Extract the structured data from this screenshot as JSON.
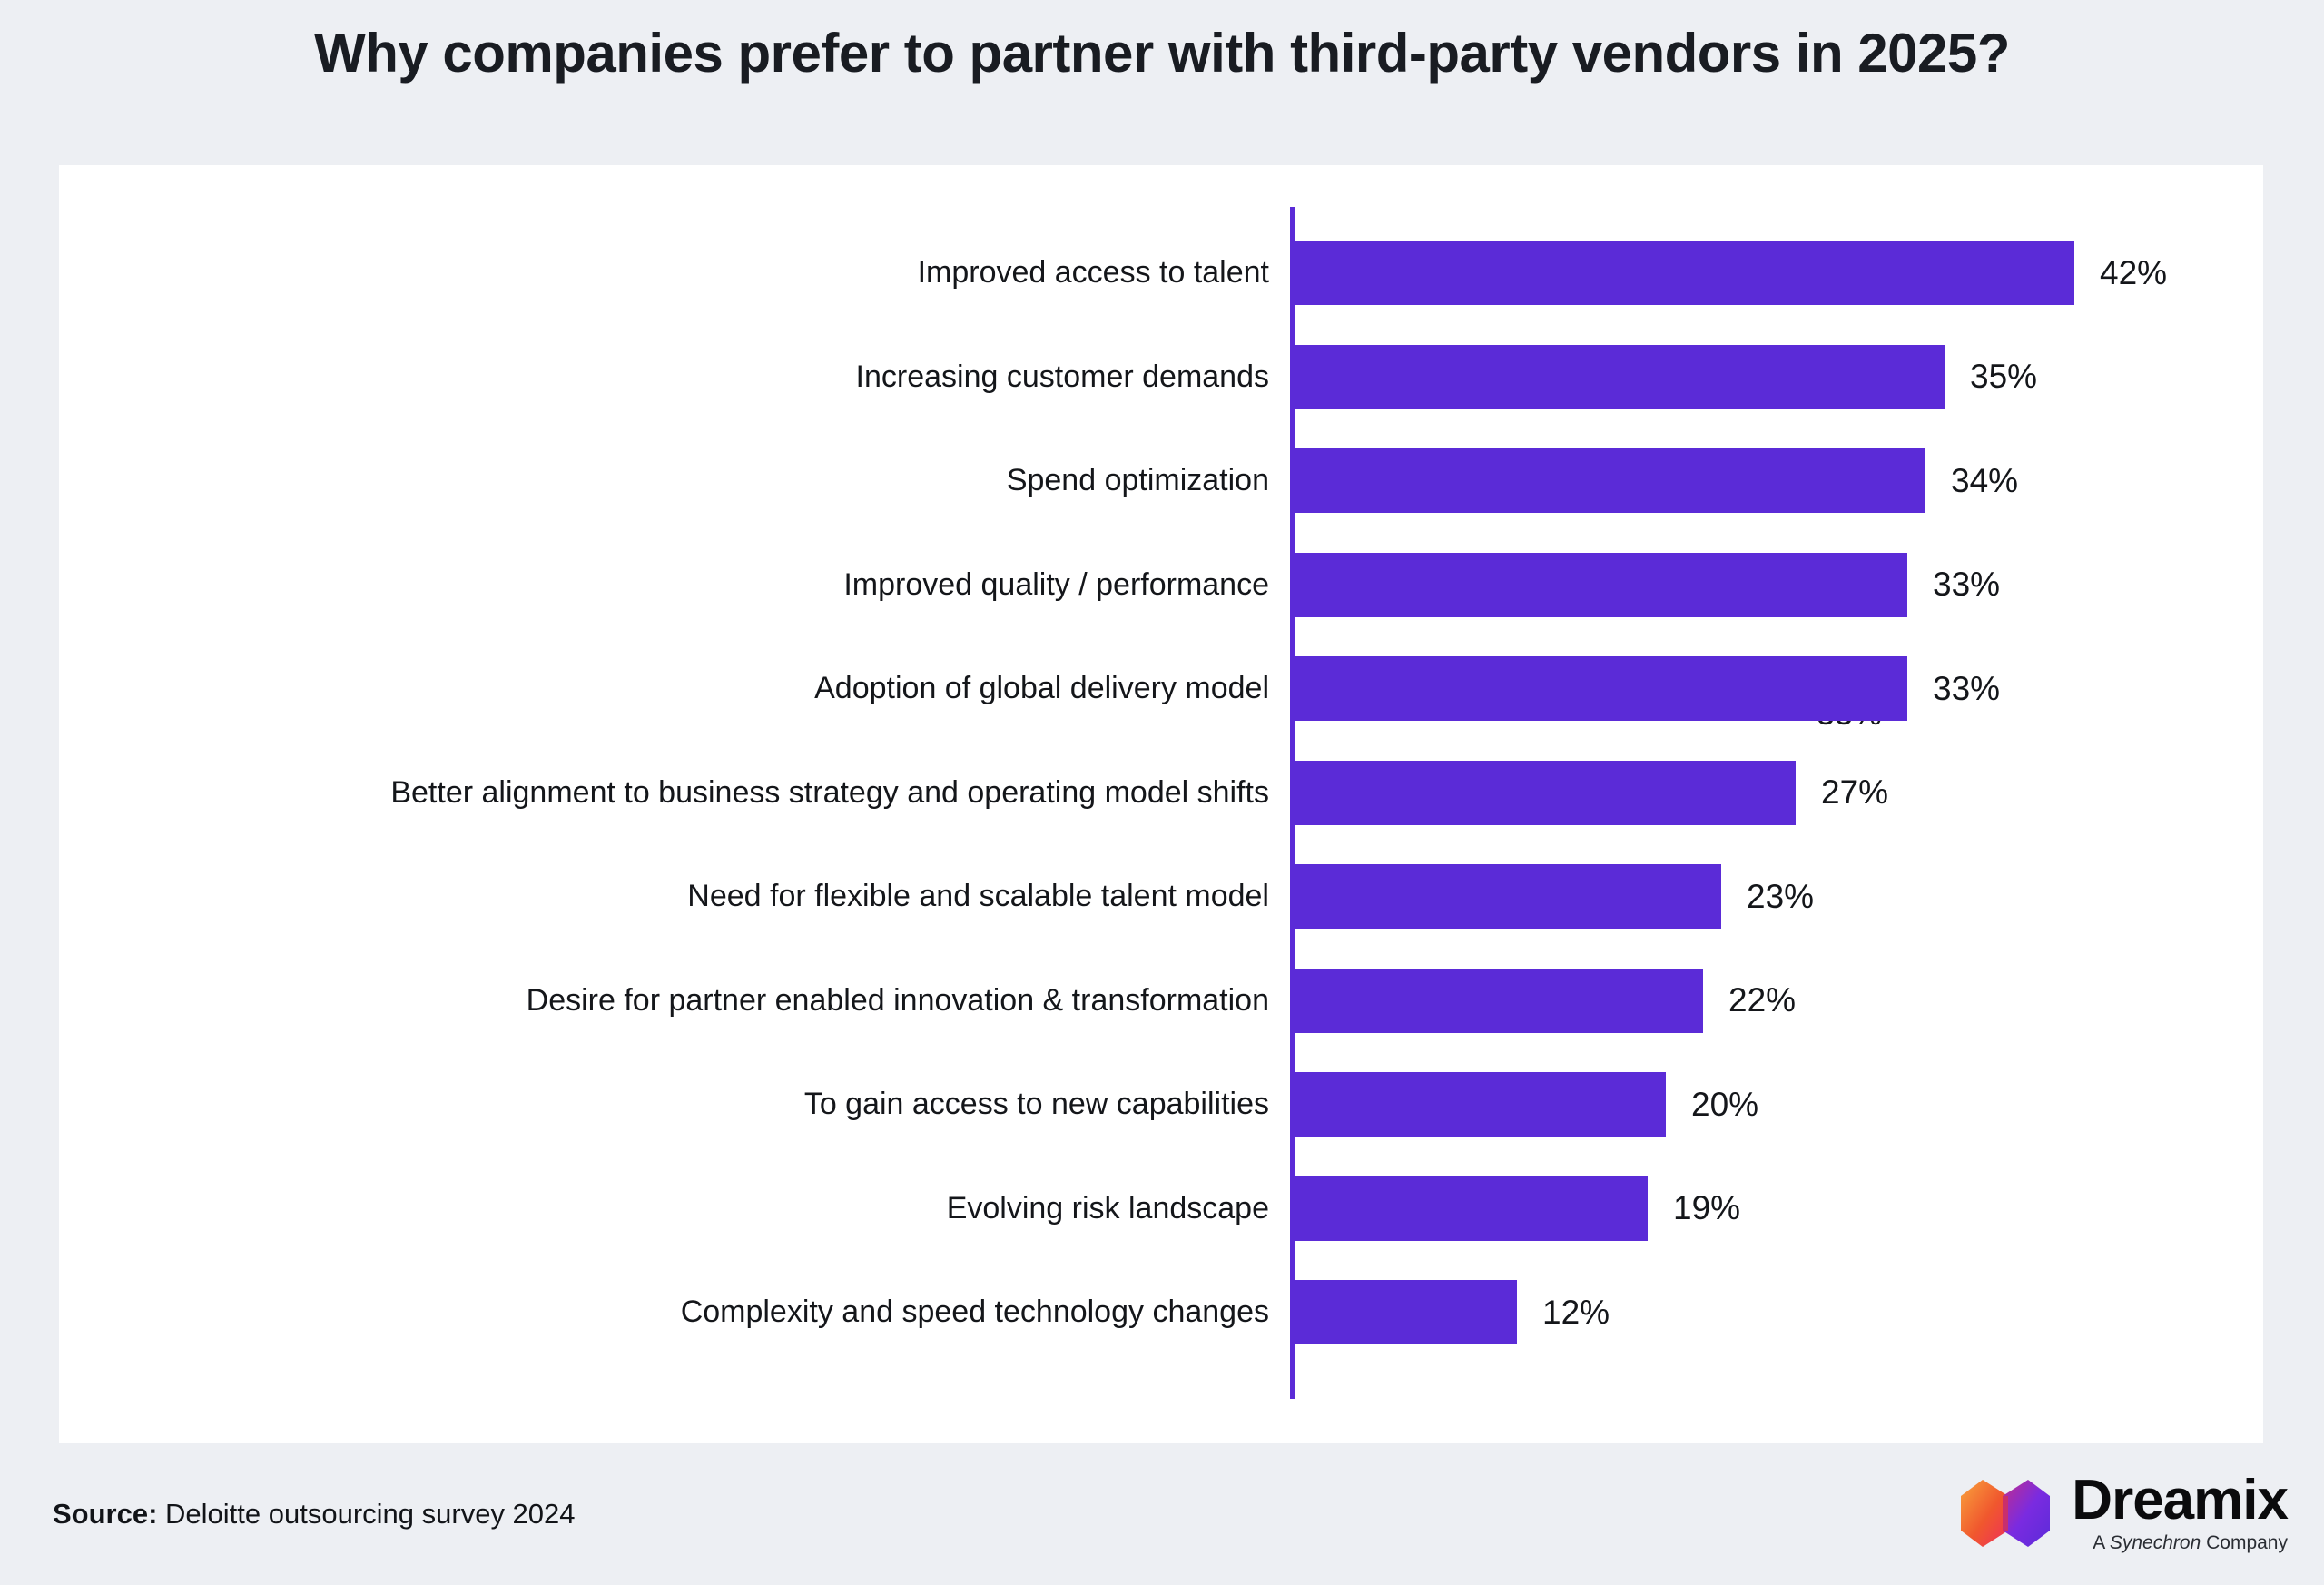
{
  "page": {
    "title": "Why companies prefer to partner with third-party vendors in 2025?",
    "background_color": "#EDEFF3",
    "card_color": "#FFFFFF"
  },
  "chart_data": {
    "type": "bar",
    "orientation": "horizontal",
    "title": "Why companies prefer to partner with third-party vendors in 2025?",
    "xlabel": "",
    "ylabel": "",
    "xlim": [
      0,
      52
    ],
    "grid": false,
    "legend": null,
    "bar_color": "#5B2BD7",
    "axis_line_color": "#5B2BD7",
    "categories": [
      "Improved access to talent",
      "Increasing customer demands",
      "Spend optimization",
      "Improved quality / performance",
      "Adoption of global delivery model",
      "Better alignment to business strategy and operating model shifts",
      "Need for flexible and scalable talent model",
      "Desire for partner enabled innovation & transformation",
      "To gain access to new capabilities",
      "Evolving risk landscape",
      "Complexity and speed technology changes"
    ],
    "values": [
      42,
      35,
      34,
      33,
      33,
      27,
      23,
      22,
      20,
      19,
      12
    ],
    "value_labels": [
      "42%",
      "35%",
      "34%",
      "33%",
      "33%",
      "27%",
      "23%",
      "22%",
      "20%",
      "19%",
      "12%"
    ],
    "duplicate_hidden_label": {
      "text": "33%",
      "row_index": 4,
      "note": "partially visible label peeking below the 'Adoption of global delivery model' bar"
    }
  },
  "source": {
    "label": "Source:",
    "text": " Deloitte outsourcing survey 2024"
  },
  "logo": {
    "wordmark": "Dreamix",
    "tagline_prefix": "A ",
    "tagline_brand": "Synechron",
    "tagline_suffix": " Company",
    "mark_colors": {
      "orange": "#F9A33C",
      "pink": "#EE2E5A",
      "magenta": "#C12E8C",
      "purple": "#5B2BD9"
    }
  }
}
